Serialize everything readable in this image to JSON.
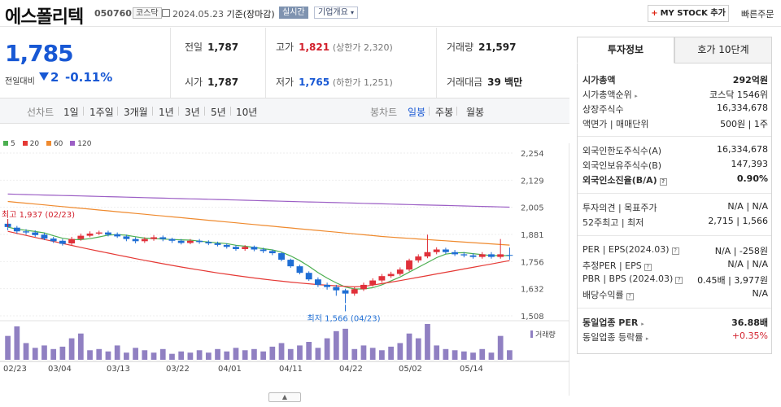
{
  "header": {
    "name": "에스폴리텍",
    "code": "050760",
    "market": "코스닥",
    "date": "2024.05.23",
    "basis": "기준(장마감)",
    "realtime": "실시간",
    "company_info": "기업개요",
    "my_stock": "MY STOCK 추가",
    "quick_order": "빠른주문"
  },
  "quote": {
    "price": "1,785",
    "change_label": "전일대비",
    "change": "2",
    "change_pct": "-0.11%"
  },
  "stats": {
    "prev_label": "전일",
    "prev": "1,787",
    "open_label": "시가",
    "open": "1,787",
    "high_label": "고가",
    "high": "1,821",
    "upper_limit": "(상한가 2,320)",
    "low_label": "저가",
    "low": "1,765",
    "lower_limit": "(하한가 1,251)",
    "volume_label": "거래량",
    "volume": "21,597",
    "amount_label": "거래대금",
    "amount": "39 백만"
  },
  "chart_tabs": {
    "line_label": "선차트",
    "line_items": [
      "1일",
      "1주일",
      "3개월",
      "1년",
      "3년",
      "5년",
      "10년"
    ],
    "candle_label": "봉차트",
    "candle_items": [
      "일봉",
      "주봉",
      "월봉"
    ],
    "candle_selected": "일봉"
  },
  "chart_data": {
    "type": "candlestick",
    "legend": [
      {
        "name": "5",
        "color": "#4caf50"
      },
      {
        "name": "20",
        "color": "#e53935"
      },
      {
        "name": "60",
        "color": "#ef8a2e"
      },
      {
        "name": "120",
        "color": "#9c5fc5"
      }
    ],
    "y_ticks": [
      "2,254",
      "2,129",
      "2,005",
      "1,881",
      "1,756",
      "1,632",
      "1,508"
    ],
    "ylim": [
      1508,
      2254
    ],
    "x_ticks": [
      "02/23",
      "03/04",
      "03/13",
      "03/22",
      "04/01",
      "04/11",
      "04/22",
      "05/02",
      "05/14"
    ],
    "high_annotation": "최고 1,937 (02/23)",
    "low_annotation": "최저 1,566 (04/23)",
    "volume_label": "거래량",
    "candles": [
      [
        1930,
        1915,
        1937,
        1900
      ],
      [
        1912,
        1895,
        1920,
        1885
      ],
      [
        1895,
        1890,
        1905,
        1880
      ],
      [
        1890,
        1878,
        1900,
        1870
      ],
      [
        1880,
        1862,
        1888,
        1855
      ],
      [
        1862,
        1850,
        1870,
        1842
      ],
      [
        1852,
        1838,
        1860,
        1830
      ],
      [
        1840,
        1860,
        1870,
        1832
      ],
      [
        1860,
        1875,
        1885,
        1852
      ],
      [
        1875,
        1885,
        1895,
        1868
      ],
      [
        1885,
        1890,
        1898,
        1878
      ],
      [
        1890,
        1880,
        1898,
        1872
      ],
      [
        1882,
        1872,
        1890,
        1865
      ],
      [
        1872,
        1860,
        1880,
        1850
      ],
      [
        1860,
        1850,
        1868,
        1840
      ],
      [
        1850,
        1860,
        1868,
        1842
      ],
      [
        1860,
        1868,
        1878,
        1852
      ],
      [
        1868,
        1860,
        1876,
        1850
      ],
      [
        1860,
        1852,
        1866,
        1842
      ],
      [
        1852,
        1842,
        1860,
        1835
      ],
      [
        1842,
        1852,
        1860,
        1836
      ],
      [
        1852,
        1846,
        1860,
        1838
      ],
      [
        1846,
        1840,
        1854,
        1832
      ],
      [
        1840,
        1833,
        1848,
        1826
      ],
      [
        1833,
        1824,
        1840,
        1816
      ],
      [
        1824,
        1814,
        1832,
        1806
      ],
      [
        1814,
        1824,
        1832,
        1806
      ],
      [
        1824,
        1812,
        1830,
        1804
      ],
      [
        1812,
        1805,
        1820,
        1796
      ],
      [
        1805,
        1795,
        1812,
        1786
      ],
      [
        1795,
        1765,
        1800,
        1758
      ],
      [
        1765,
        1735,
        1770,
        1728
      ],
      [
        1735,
        1705,
        1742,
        1698
      ],
      [
        1705,
        1675,
        1712,
        1668
      ],
      [
        1675,
        1650,
        1684,
        1640
      ],
      [
        1650,
        1640,
        1660,
        1628
      ],
      [
        1640,
        1625,
        1650,
        1600
      ],
      [
        1625,
        1610,
        1632,
        1566
      ],
      [
        1610,
        1630,
        1640,
        1600
      ],
      [
        1630,
        1650,
        1660,
        1622
      ],
      [
        1650,
        1670,
        1680,
        1642
      ],
      [
        1670,
        1690,
        1700,
        1660
      ],
      [
        1690,
        1700,
        1710,
        1682
      ],
      [
        1700,
        1720,
        1730,
        1692
      ],
      [
        1720,
        1762,
        1770,
        1712
      ],
      [
        1762,
        1780,
        1790,
        1752
      ],
      [
        1780,
        1800,
        1880,
        1772
      ],
      [
        1800,
        1812,
        1822,
        1790
      ],
      [
        1812,
        1800,
        1820,
        1792
      ],
      [
        1800,
        1790,
        1810,
        1782
      ],
      [
        1790,
        1785,
        1800,
        1776
      ],
      [
        1785,
        1778,
        1795,
        1770
      ],
      [
        1778,
        1790,
        1800,
        1770
      ],
      [
        1790,
        1778,
        1800,
        1770
      ],
      [
        1778,
        1790,
        1860,
        1770
      ],
      [
        1787,
        1785,
        1821,
        1765
      ]
    ],
    "volumes": [
      20,
      28,
      14,
      10,
      12,
      9,
      11,
      18,
      22,
      8,
      9,
      7,
      12,
      6,
      10,
      8,
      6,
      9,
      5,
      7,
      6,
      8,
      6,
      9,
      7,
      10,
      8,
      9,
      7,
      11,
      14,
      9,
      12,
      15,
      10,
      18,
      24,
      26,
      9,
      12,
      10,
      8,
      11,
      14,
      22,
      18,
      30,
      12,
      9,
      8,
      7,
      6,
      9,
      6,
      20,
      8
    ]
  },
  "panel": {
    "tab_invest": "투자정보",
    "tab_hoga": "호가 10단계",
    "market_cap_label": "시가총액",
    "market_cap": "292억원",
    "market_cap_rank_label": "시가총액순위",
    "market_cap_rank": "코스닥 1546위",
    "shares_label": "상장주식수",
    "shares": "16,334,678",
    "par_label": "액면가 | 매매단위",
    "par": "500원 | 1주",
    "foreign_limit_label": "외국인한도주식수(A)",
    "foreign_limit": "16,334,678",
    "foreign_hold_label": "외국인보유주식수(B)",
    "foreign_hold": "147,393",
    "foreign_ratio_label": "외국인소진율(B/A)",
    "foreign_ratio": "0.90%",
    "opinion_label": "투자의견 | 목표주가",
    "opinion": "N/A | N/A",
    "week52_label": "52주최고 | 최저",
    "week52": "2,715 | 1,566",
    "per_label": "PER | EPS(2024.03)",
    "per": "N/A | -258원",
    "est_per_label": "추정PER | EPS",
    "est_per": "N/A | N/A",
    "pbr_label": "PBR | BPS (2024.03)",
    "pbr": "0.45배 | 3,977원",
    "div_label": "배당수익률",
    "div": "N/A",
    "industry_per_label": "동일업종 PER",
    "industry_per": "36.88배",
    "industry_rate_label": "동일업종 등락률",
    "industry_rate": "+0.35%"
  }
}
